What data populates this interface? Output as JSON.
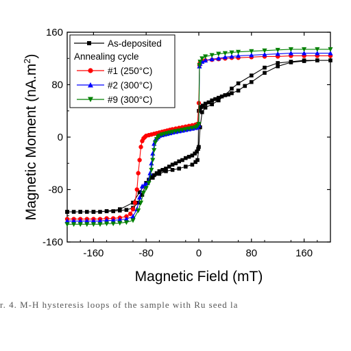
{
  "chart_data": {
    "type": "line",
    "xlabel": "Magnetic Field (mT)",
    "ylabel": "Magnetic Moment (nA.m",
    "ylabel_sup": "2",
    "ylabel_tail": ")",
    "xlim": [
      -200,
      200
    ],
    "ylim": [
      -160,
      160
    ],
    "x_ticks": [
      -160,
      -80,
      0,
      80,
      160
    ],
    "y_ticks": [
      -160,
      -80,
      0,
      80,
      160
    ],
    "grid": false,
    "legend_position": "top-left",
    "legend_group_title": "Annealing cycle",
    "series": [
      {
        "name": "As-deposited",
        "color": "#000000",
        "marker": "square",
        "x": [
          -200,
          -190,
          -180,
          -170,
          -160,
          -150,
          -140,
          -130,
          -120,
          -110,
          -100,
          -92,
          -86,
          -80,
          -76,
          -72,
          -68,
          -64,
          -60,
          -55,
          -50,
          -45,
          -40,
          -35,
          -30,
          -25,
          -20,
          -15,
          -10,
          -6,
          -3,
          -1,
          0,
          2,
          4,
          6,
          10,
          15,
          20,
          25,
          30,
          35,
          40,
          45,
          50,
          60,
          70,
          80,
          100,
          120,
          140,
          160,
          180,
          200,
          180,
          160,
          140,
          120,
          100,
          80,
          60,
          50,
          40,
          30,
          20,
          10,
          5,
          2,
          0,
          -2,
          -5,
          -10,
          -20,
          -30,
          -40,
          -50,
          -60,
          -70,
          -80,
          -90,
          -100,
          -120,
          -140,
          -160,
          -180,
          -200
        ],
        "y": [
          -114,
          -114,
          -114,
          -114,
          -114,
          -114,
          -113,
          -113,
          -112,
          -111,
          -108,
          -100,
          -88,
          -70,
          -65,
          -61,
          -58,
          -55,
          -52,
          -50,
          -48,
          -45,
          -42,
          -40,
          -37,
          -35,
          -32,
          -30,
          -28,
          -25,
          -22,
          -18,
          40,
          44,
          46,
          48,
          51,
          53,
          56,
          58,
          60,
          62,
          64,
          65,
          67,
          71,
          78,
          84,
          98,
          108,
          114,
          116,
          117,
          117,
          117,
          117,
          115,
          113,
          106,
          94,
          82,
          74,
          64,
          56,
          50,
          45,
          38,
          15,
          -15,
          -35,
          -38,
          -42,
          -45,
          -48,
          -50,
          -52,
          -56,
          -62,
          -70,
          -84,
          -100,
          -110,
          -113,
          -114,
          -114,
          -114
        ]
      },
      {
        "name": "#1 (250°C)",
        "color": "#ff0000",
        "marker": "circle",
        "x": [
          -200,
          -190,
          -180,
          -170,
          -160,
          -150,
          -140,
          -130,
          -120,
          -110,
          -104,
          -100,
          -97,
          -94,
          -92,
          -90,
          -88,
          -86,
          -84,
          -82,
          -80,
          -76,
          -72,
          -68,
          -64,
          -60,
          -56,
          -52,
          -48,
          -44,
          -40,
          -35,
          -30,
          -25,
          -20,
          -15,
          -10,
          -5,
          -2,
          0,
          1,
          2,
          5,
          10,
          20,
          30,
          40,
          50,
          60,
          80,
          100,
          120,
          140,
          160,
          180,
          200
        ],
        "y": [
          -125,
          -125,
          -125,
          -125,
          -125,
          -125,
          -124,
          -124,
          -123,
          -121,
          -117,
          -110,
          -100,
          -80,
          -55,
          -35,
          -15,
          -6,
          -2,
          0,
          2,
          3,
          4,
          5,
          6,
          7,
          8,
          9,
          10,
          11,
          12,
          13,
          14,
          15,
          16,
          17,
          18,
          19,
          20,
          52,
          110,
          114,
          116,
          117,
          118,
          119,
          120,
          121,
          121,
          122,
          123,
          123,
          124,
          124,
          124,
          124
        ]
      },
      {
        "name": "#2 (300°C)",
        "color": "#0000ff",
        "marker": "triangle-up",
        "x": [
          -200,
          -190,
          -180,
          -170,
          -160,
          -150,
          -140,
          -130,
          -120,
          -110,
          -100,
          -94,
          -90,
          -86,
          -82,
          -78,
          -74,
          -72,
          -70,
          -68,
          -66,
          -64,
          -62,
          -60,
          -56,
          -52,
          -48,
          -44,
          -40,
          -35,
          -30,
          -25,
          -20,
          -15,
          -10,
          -5,
          -2,
          0,
          1,
          2,
          5,
          10,
          20,
          30,
          40,
          50,
          60,
          80,
          100,
          120,
          140,
          160,
          180,
          200
        ],
        "y": [
          -128,
          -128,
          -128,
          -128,
          -128,
          -128,
          -127,
          -127,
          -126,
          -125,
          -121,
          -110,
          -92,
          -75,
          -72,
          -70,
          -55,
          -40,
          -25,
          -10,
          -4,
          -2,
          0,
          2,
          3,
          4,
          5,
          6,
          7,
          8,
          9,
          10,
          11,
          12,
          13,
          14,
          15,
          18,
          108,
          112,
          115,
          117,
          119,
          120,
          122,
          123,
          124,
          125,
          126,
          127,
          128,
          128,
          128,
          128
        ]
      },
      {
        "name": "#9 (300°C)",
        "color": "#008000",
        "marker": "triangle-down",
        "x": [
          -200,
          -190,
          -180,
          -170,
          -160,
          -150,
          -140,
          -130,
          -120,
          -110,
          -100,
          -92,
          -88,
          -84,
          -80,
          -76,
          -72,
          -70,
          -68,
          -66,
          -64,
          -62,
          -60,
          -56,
          -52,
          -48,
          -44,
          -40,
          -35,
          -30,
          -25,
          -20,
          -15,
          -10,
          -5,
          -2,
          0,
          1,
          2,
          5,
          10,
          20,
          30,
          40,
          50,
          60,
          80,
          100,
          120,
          140,
          160,
          180,
          200
        ],
        "y": [
          -133,
          -133,
          -133,
          -133,
          -133,
          -133,
          -132,
          -132,
          -131,
          -130,
          -127,
          -112,
          -100,
          -85,
          -78,
          -70,
          -50,
          -35,
          -20,
          -8,
          -3,
          0,
          2,
          4,
          5,
          6,
          7,
          8,
          9,
          10,
          11,
          12,
          13,
          14,
          15,
          17,
          20,
          110,
          115,
          120,
          123,
          125,
          127,
          128,
          129,
          130,
          131,
          132,
          133,
          134,
          134,
          134,
          134
        ]
      }
    ]
  },
  "caption_text": "r. 4.     M-H hysteresis loops of the sample with Ru seed la"
}
